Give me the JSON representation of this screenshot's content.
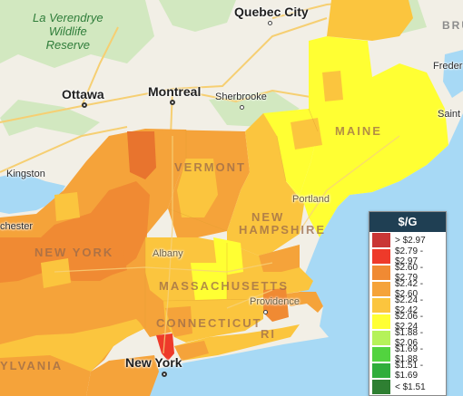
{
  "map": {
    "colors": {
      "land": "#f2efe6",
      "water": "#a7d9f5",
      "forest": "#cfe6bd",
      "road": "#f6cf72",
      "lake": "#a7d9f5"
    },
    "labels": {
      "park": "La Verendrye\nWildlife\nReserve",
      "quebec_city": "Quebec City",
      "ottawa": "Ottawa",
      "montreal": "Montreal",
      "sherbrooke": "Sherbrooke",
      "kingston": "Kingston",
      "rochester": "chester",
      "maine": "MAINE",
      "vermont": "VERMONT",
      "new_hampshire_1": "NEW",
      "new_hampshire_2": "HAMPSHIRE",
      "new_york": "NEW YORK",
      "massachusetts": "MASSACHUSETTS",
      "connecticut": "CONNECTICUT",
      "ri": "RI",
      "pennsylvania": "YLVANIA",
      "portland": "Portland",
      "albany": "Albany",
      "providence": "Providence",
      "new_york_city": "New York",
      "brunswick": "BRU",
      "fredericton": "Freder",
      "saint_john": "Saint"
    }
  },
  "legend": {
    "title": "$/G",
    "items": [
      {
        "label": "> $2.97",
        "color": "#c93636"
      },
      {
        "label": "$2.79 - $2.97",
        "color": "#ee3a2a"
      },
      {
        "label": "$2.60 - $2.79",
        "color": "#f08a33"
      },
      {
        "label": "$2.42 - $2.60",
        "color": "#f5a33a"
      },
      {
        "label": "$2.24 - $2.42",
        "color": "#fbc53e"
      },
      {
        "label": "$2.06 - $2.24",
        "color": "#ffff33"
      },
      {
        "label": "$1.88 - $2.06",
        "color": "#b5f25a"
      },
      {
        "label": "$1.69 - $1.88",
        "color": "#52d33f"
      },
      {
        "label": "$1.51 - $1.69",
        "color": "#2fae3b"
      },
      {
        "label": "< $1.51",
        "color": "#2e7f32"
      }
    ]
  }
}
